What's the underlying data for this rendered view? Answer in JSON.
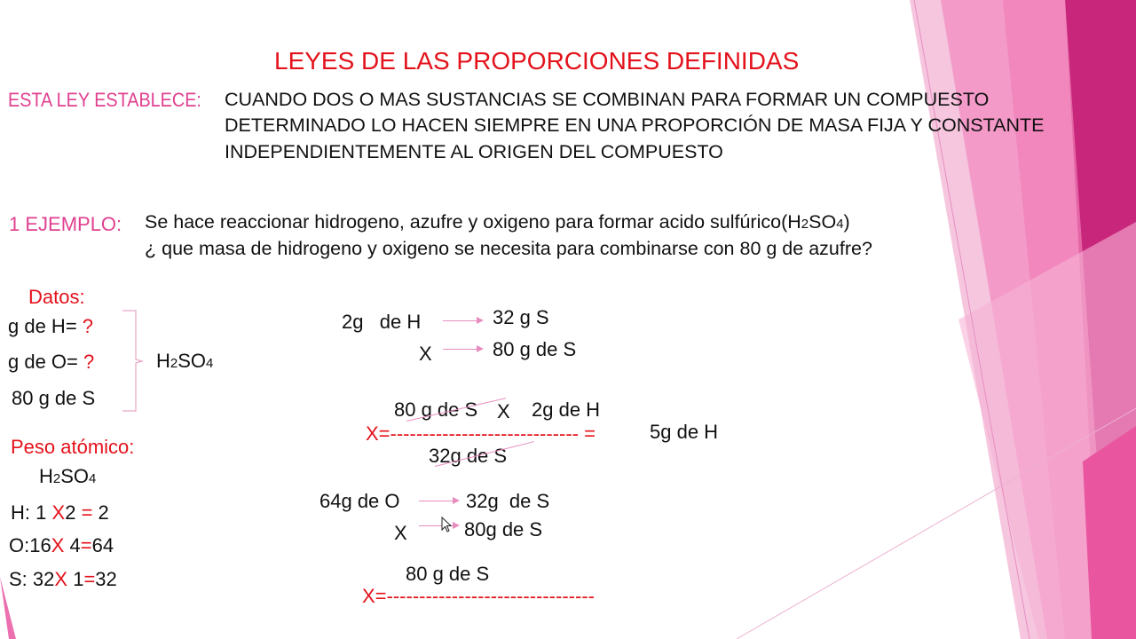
{
  "slide": {
    "title": "LEYES DE LAS PROPORCIONES DEFINIDAS",
    "law_label": "ESTA LEY ESTABLECE:",
    "law_lines": [
      "CUANDO DOS O MAS SUSTANCIAS  SE COMBINAN PARA FORMAR UN COMPUESTO",
      "DETERMINADO LO HACEN SIEMPRE EN UNA PROPORCIÓN DE MASA FIJA Y CONSTANTE",
      "INDEPENDIENTEMENTE AL ORIGEN DEL COMPUESTO"
    ],
    "example_label": "1 EJEMPLO:",
    "example_line1": "Se hace reaccionar hidrogeno, azufre  y oxigeno  para formar acido sulfúrico(H",
    "example_line1_sub1": "2",
    "example_line1_mid": "SO",
    "example_line1_sub2": "4",
    "example_line1_end": ")",
    "example_line2": "¿ que masa de hidrogeno y oxigeno se necesita para combinarse con 80 g de azufre?",
    "datos": {
      "label": "Datos:",
      "items": [
        {
          "text": "g de H=",
          "mark": "?"
        },
        {
          "text": "g de O=",
          "mark": "?"
        },
        {
          "text": "80 g de S",
          "mark": ""
        }
      ],
      "compound": "H",
      "compound_sub1": "2",
      "compound_mid": "SO",
      "compound_sub2": "4"
    },
    "peso": {
      "label": "Peso atómico:",
      "compound": "H",
      "compound_sub1": "2",
      "compound_mid": "SO",
      "compound_sub2": "4",
      "rows": [
        {
          "el": "H:",
          "a": "1",
          "x": "X",
          "b": "2",
          "eq": "=",
          "r": " 2"
        },
        {
          "el": "O:",
          "a": "16",
          "x": "X",
          "b": " 4",
          "eq": "=",
          "r": "64"
        },
        {
          "el": "S:",
          "a": " 32",
          "x": "X",
          "b": " 1",
          "eq": "=",
          "r": "32"
        }
      ]
    },
    "calc_h": {
      "r1_left": "2g   de H",
      "r1_right": "32 g S",
      "r2_left": "X",
      "r2_right": "80 g de S",
      "num_a": "80 g de S",
      "num_x": "X",
      "num_b": "2g de H",
      "x_eq": "X=",
      "dashes": "-----------------------------",
      "result_eq": "=",
      "result": "5g de H",
      "den": "32g de S"
    },
    "calc_o": {
      "r1_left": "64g de O",
      "r1_right": "32g  de S",
      "r2_left": "X",
      "r2_right": "80g de S",
      "num": "80 g de S",
      "x_eq": "X=",
      "dashes": "--------------------------------"
    },
    "colors": {
      "title": "#e3121b",
      "label_pink": "#e0408f",
      "accent_pink": "#e88cc0",
      "bg_magenta": "#c8267a"
    }
  }
}
